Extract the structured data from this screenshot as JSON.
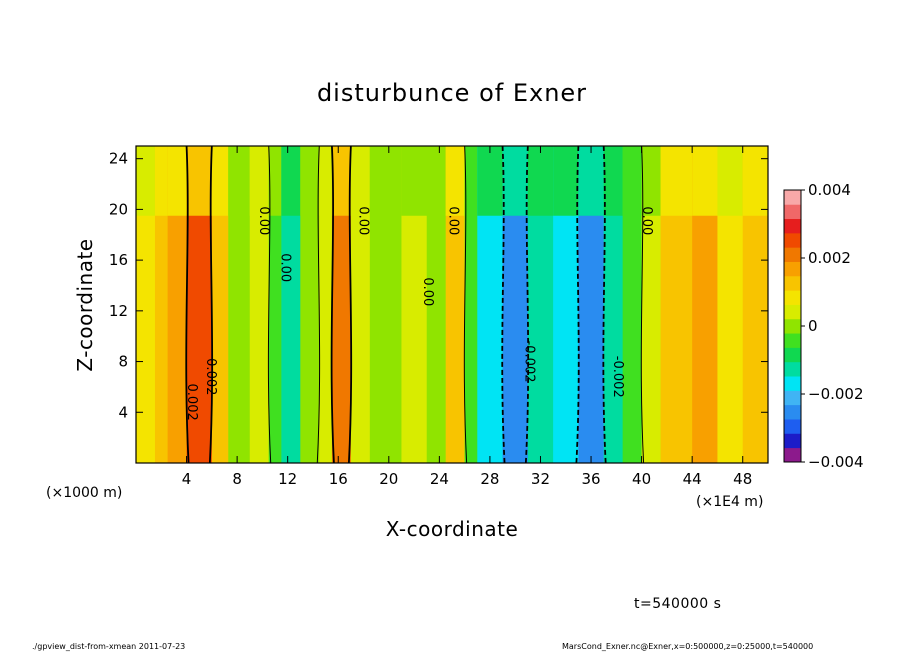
{
  "chart_data": {
    "type": "heatmap",
    "title": "disturbunce of Exner",
    "xlabel": "X-coordinate",
    "ylabel": "Z-coordinate",
    "x_units_left": "(×1000 m)",
    "x_units_right": "(×1E4 m)",
    "xlim": [
      0,
      50
    ],
    "ylim": [
      0,
      25
    ],
    "x_ticks": [
      "4",
      "8",
      "12",
      "16",
      "20",
      "24",
      "28",
      "32",
      "36",
      "40",
      "44",
      "48"
    ],
    "y_ticks": [
      "4",
      "8",
      "12",
      "16",
      "20",
      "24"
    ],
    "colorbar": {
      "range": [
        -0.004,
        0.004
      ],
      "tick_labels": [
        "0.004",
        "0.002",
        "0",
        "−0.002",
        "−0.004"
      ],
      "colors": [
        "#8c1a8c",
        "#1c1cc8",
        "#1e5ef0",
        "#2a8cf0",
        "#40b4f4",
        "#00e4f4",
        "#00dca0",
        "#10d850",
        "#40e020",
        "#90e400",
        "#d8ec00",
        "#f4e400",
        "#f8c400",
        "#f8a000",
        "#f07800",
        "#f04a00",
        "#e61e1e",
        "#f06868",
        "#f8a8a8"
      ]
    },
    "columns": [
      {
        "x": [
          0,
          1.5
        ],
        "value": 0.0008
      },
      {
        "x": [
          1.5,
          2.5
        ],
        "value": 0.0012
      },
      {
        "x": [
          2.5,
          4
        ],
        "value": 0.0018
      },
      {
        "x": [
          4,
          6
        ],
        "value": 0.0026
      },
      {
        "x": [
          6,
          7.3
        ],
        "value": 0.0012
      },
      {
        "x": [
          7.3,
          9
        ],
        "value": 0.0002
      },
      {
        "x": [
          9,
          10.5
        ],
        "value": 0.0004
      },
      {
        "x": [
          10.5,
          11.5
        ],
        "value": -0.0003
      },
      {
        "x": [
          11.5,
          13
        ],
        "value": -0.0012
      },
      {
        "x": [
          13,
          14.5
        ],
        "value": -0.0002
      },
      {
        "x": [
          14.5,
          15.5
        ],
        "value": 0.0004
      },
      {
        "x": [
          15.5,
          17
        ],
        "value": 0.0022
      },
      {
        "x": [
          17,
          18.5
        ],
        "value": 0.0004
      },
      {
        "x": [
          18.5,
          21
        ],
        "value": 0.0001
      },
      {
        "x": [
          21,
          23
        ],
        "value": 0.0003
      },
      {
        "x": [
          23,
          24.5
        ],
        "value": 0.0002
      },
      {
        "x": [
          24.5,
          26
        ],
        "value": 0.0014
      },
      {
        "x": [
          26,
          27
        ],
        "value": -0.0004
      },
      {
        "x": [
          27,
          29
        ],
        "value": -0.0018
      },
      {
        "x": [
          29,
          31
        ],
        "value": -0.0024
      },
      {
        "x": [
          31,
          33
        ],
        "value": -0.0012
      },
      {
        "x": [
          33,
          35
        ],
        "value": -0.0018
      },
      {
        "x": [
          35,
          37
        ],
        "value": -0.0024
      },
      {
        "x": [
          37,
          38.5
        ],
        "value": -0.0012
      },
      {
        "x": [
          38.5,
          40
        ],
        "value": -0.0004
      },
      {
        "x": [
          40,
          41.5
        ],
        "value": 0.0003
      },
      {
        "x": [
          41.5,
          44
        ],
        "value": 0.0012
      },
      {
        "x": [
          44,
          46
        ],
        "value": 0.0016
      },
      {
        "x": [
          46,
          48
        ],
        "value": 0.001
      },
      {
        "x": [
          48,
          50
        ],
        "value": 0.0014
      }
    ],
    "contour_labels": [
      {
        "text": "0.00",
        "x": 9.8,
        "z": 19.1
      },
      {
        "text": "0.00",
        "x": 17.7,
        "z": 19.1
      },
      {
        "text": "0.00",
        "x": 24.8,
        "z": 19.1
      },
      {
        "text": "0.00",
        "x": 11.5,
        "z": 15.4
      },
      {
        "text": "0.00",
        "x": 22.8,
        "z": 13.5
      },
      {
        "text": "0.00",
        "x": 40.1,
        "z": 19.1
      },
      {
        "text": "0.002",
        "x": 5.6,
        "z": 6.8
      },
      {
        "text": "0.002",
        "x": 4.1,
        "z": 4.8
      },
      {
        "text": "-0.002",
        "x": 30.8,
        "z": 8.0
      },
      {
        "text": "-0.002",
        "x": 37.8,
        "z": 6.8
      }
    ]
  },
  "notes": {
    "time": "t=540000 s",
    "footer_left": "./gpview_dist-from-xmean  2011-07-23",
    "footer_right": "MarsCond_Exner.nc@Exner,x=0:500000,z=0:25000,t=540000"
  }
}
